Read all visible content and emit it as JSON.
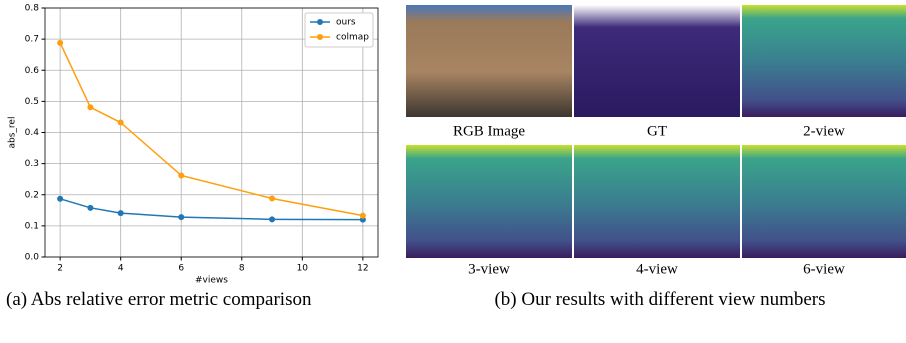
{
  "chart_data": {
    "type": "line",
    "x": [
      2,
      3,
      4,
      6,
      9,
      12
    ],
    "series": [
      {
        "name": "ours",
        "color": "#1f77b4",
        "values": [
          0.187,
          0.158,
          0.141,
          0.128,
          0.121,
          0.12
        ]
      },
      {
        "name": "colmap",
        "color": "#ff9f0e",
        "values": [
          0.688,
          0.481,
          0.432,
          0.262,
          0.188,
          0.133
        ]
      }
    ],
    "xlabel": "#views",
    "ylabel": "abs_rel",
    "xlim": [
      1.5,
      12.5
    ],
    "xticks": [
      2,
      4,
      6,
      8,
      10,
      12
    ],
    "ylim": [
      0,
      0.8
    ],
    "yticks": [
      {
        "value": 0,
        "label": "0.0"
      },
      0.1,
      0.2,
      0.3,
      0.4,
      0.5,
      0.6,
      0.7,
      0.8
    ],
    "grid": true,
    "legend": "upper-right"
  },
  "captions": {
    "a": "(a) Abs relative error metric comparison",
    "b": "(b) Our results with different view numbers"
  },
  "panels": [
    "RGB  Image",
    "GT",
    "2-view",
    "3-view",
    "4-view",
    "6-view"
  ]
}
